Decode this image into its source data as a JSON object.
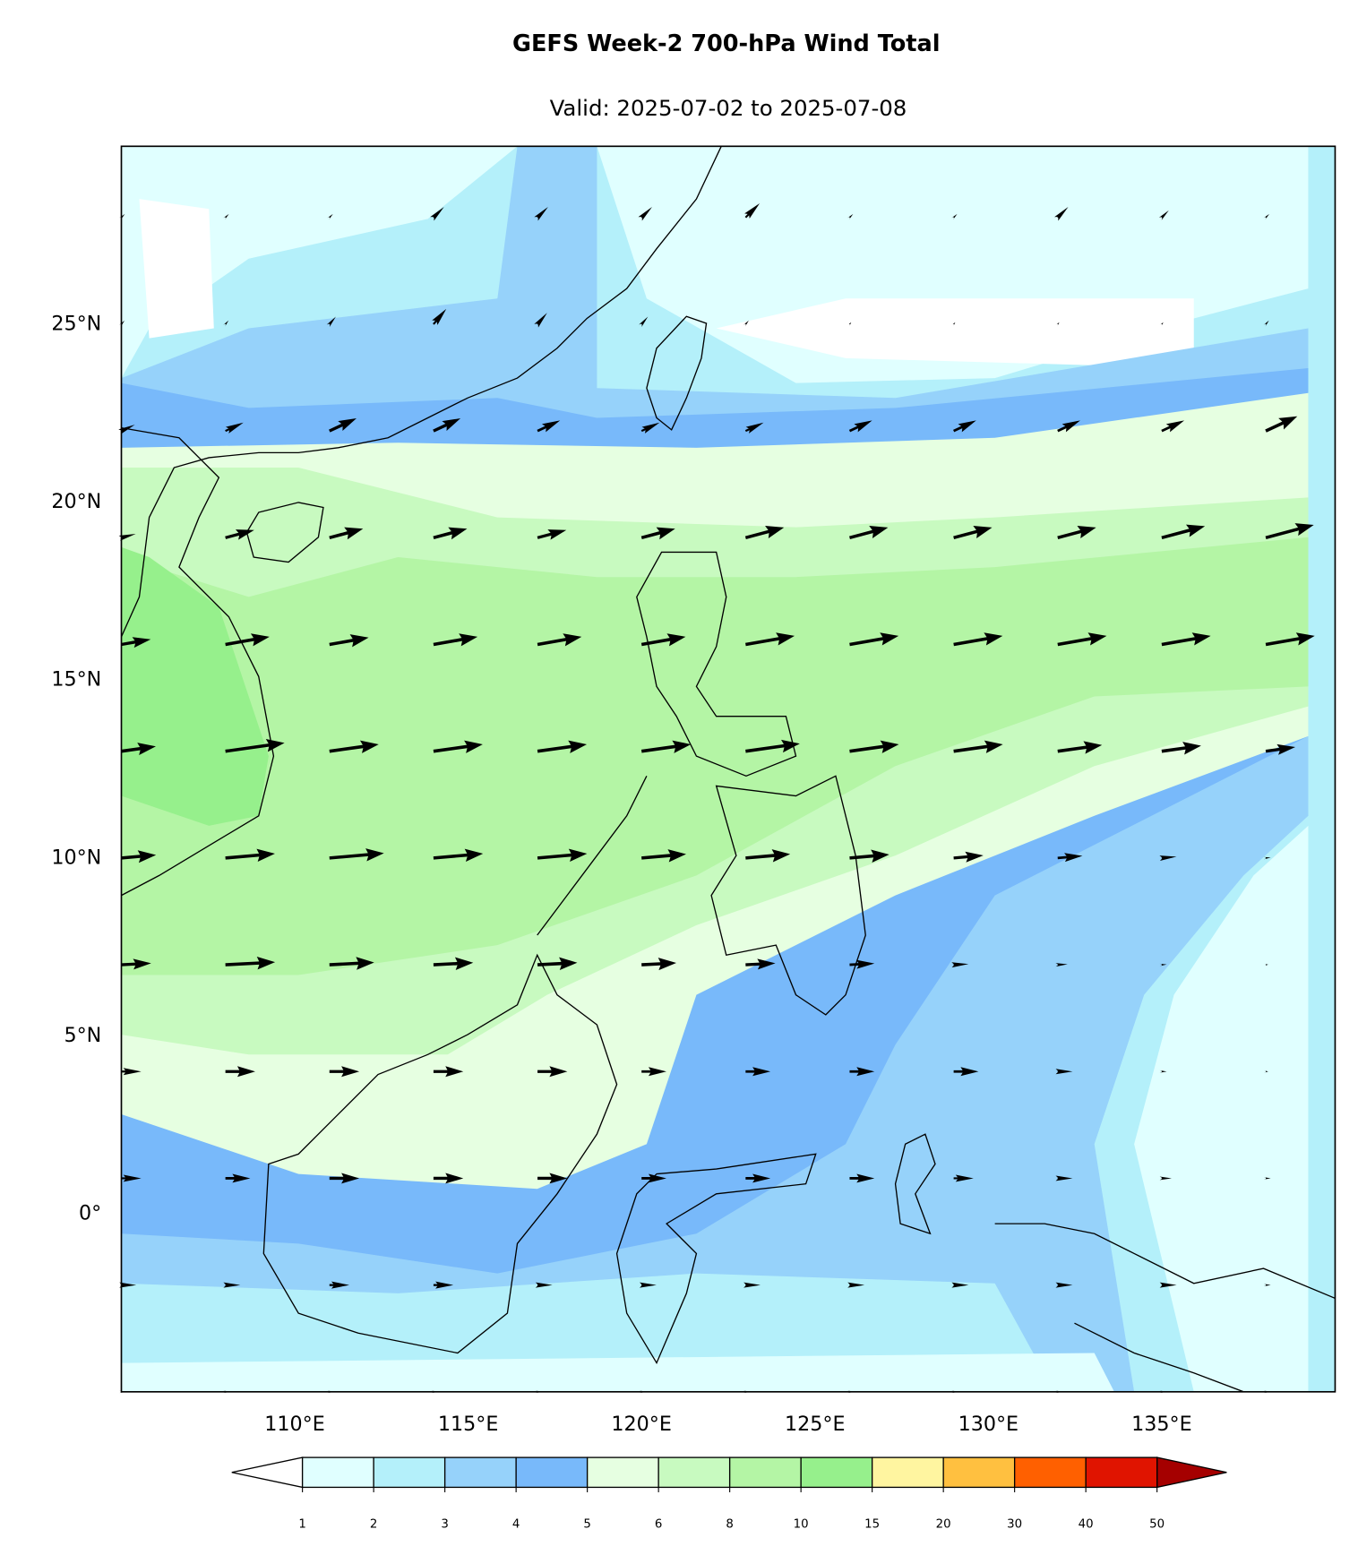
{
  "chart_data": {
    "type": "vector_field",
    "title": "GEFS Week-2 700-hPa Wind Total",
    "subtitle": "Valid: 2025-07-02 to 2025-07-08",
    "xlim": [
      105,
      140
    ],
    "ylim": [
      -5,
      30
    ],
    "xticks": [
      {
        "value": 110,
        "label": "110°E"
      },
      {
        "value": 115,
        "label": "115°E"
      },
      {
        "value": 120,
        "label": "120°E"
      },
      {
        "value": 125,
        "label": "125°E"
      },
      {
        "value": 130,
        "label": "130°E"
      },
      {
        "value": 135,
        "label": "135°E"
      }
    ],
    "yticks": [
      {
        "value": 0,
        "label": "0°"
      },
      {
        "value": 5,
        "label": "5°N"
      },
      {
        "value": 10,
        "label": "10°N"
      },
      {
        "value": 15,
        "label": "15°N"
      },
      {
        "value": 20,
        "label": "20°N"
      },
      {
        "value": 25,
        "label": "25°N"
      }
    ],
    "lons": [
      105,
      108,
      111,
      114,
      117,
      120,
      123,
      126,
      129,
      132,
      135,
      138
    ],
    "lats": [
      28,
      25,
      22,
      19,
      16,
      13,
      10,
      7,
      4,
      1,
      -2,
      -5
    ],
    "angles": [
      45,
      50,
      25,
      15,
      10,
      8,
      5,
      3,
      0,
      0,
      0,
      0
    ],
    "speed": [
      [
        1,
        1,
        1,
        3,
        3,
        3,
        4,
        1,
        1,
        3,
        2,
        1
      ],
      [
        1,
        1,
        2,
        4,
        3,
        2,
        1,
        0.5,
        0.5,
        0.5,
        0.5,
        1
      ],
      [
        3,
        4,
        6,
        6,
        5,
        4,
        4,
        5,
        5,
        5,
        5,
        7
      ],
      [
        3,
        6,
        7,
        7,
        6,
        7,
        8,
        8,
        8,
        8,
        9,
        10
      ],
      [
        6,
        9,
        8,
        9,
        9,
        9,
        10,
        10,
        10,
        10,
        10,
        10
      ],
      [
        7,
        12,
        10,
        10,
        10,
        10,
        11,
        10,
        10,
        9,
        8,
        6
      ],
      [
        7,
        10,
        11,
        10,
        10,
        9,
        9,
        8,
        6,
        5,
        3,
        1
      ],
      [
        6,
        10,
        9,
        8,
        8,
        7,
        6,
        5,
        3,
        2,
        1,
        0.5
      ],
      [
        4,
        6,
        6,
        6,
        6,
        5,
        5,
        5,
        5,
        3,
        1,
        0.5
      ],
      [
        4,
        5,
        6,
        6,
        6,
        5,
        5,
        5,
        4,
        3,
        2,
        1
      ],
      [
        3,
        3,
        4,
        4,
        3,
        3,
        3,
        3,
        3,
        3,
        3,
        1
      ],
      [
        1,
        1,
        1,
        1,
        1,
        1,
        1,
        1,
        1,
        1,
        1,
        1
      ]
    ],
    "arrow_color": "#000000",
    "colorbar": {
      "levels": [
        1,
        2,
        3,
        4,
        5,
        6,
        8,
        10,
        15,
        20,
        30,
        40,
        50
      ],
      "colors": [
        "#e0ffff",
        "#b4f0fa",
        "#96d2fa",
        "#78b9fa",
        "#e6ffe1",
        "#c8fac0",
        "#b4f5a5",
        "#96f08c",
        "#fff5a0",
        "#ffc040",
        "#ff6000",
        "#e01400"
      ],
      "under_color": "#ffffff",
      "over_color": "#a50000"
    }
  }
}
